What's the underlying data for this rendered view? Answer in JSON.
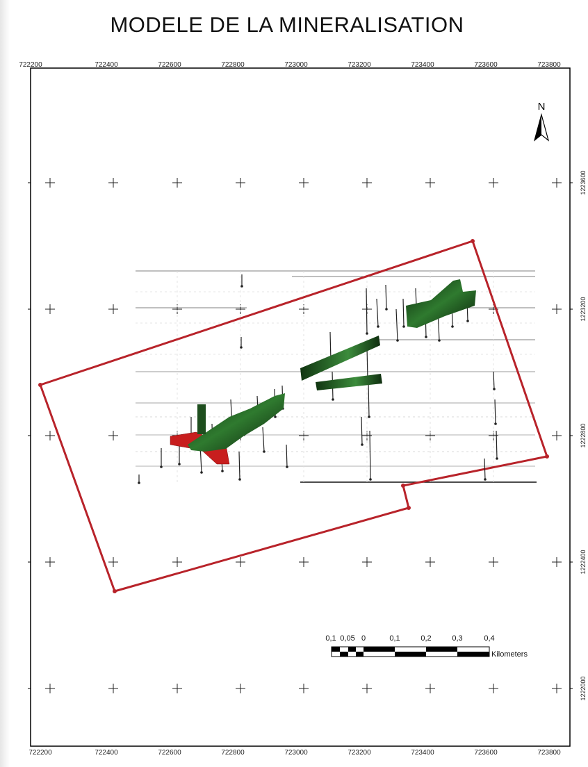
{
  "map": {
    "title": "MODELE DE LA MINERALISATION",
    "north_label": "N",
    "x_ticks": [
      "722200",
      "722400",
      "722600",
      "722800",
      "723000",
      "723200",
      "723400",
      "723600",
      "723800"
    ],
    "y_ticks": [
      "1223600",
      "1223200",
      "1222800",
      "1222400",
      "1222000"
    ],
    "scale_bar": {
      "labels": [
        "0,1",
        "0,05",
        "0",
        "0,1",
        "0,2",
        "0,3",
        "0,4"
      ],
      "units": "Kilometers"
    },
    "colors": {
      "boundary": "#b8232a",
      "orebody_green": "#1e5a1e",
      "orebody_red": "#c81e1e",
      "frame": "#000000"
    }
  }
}
